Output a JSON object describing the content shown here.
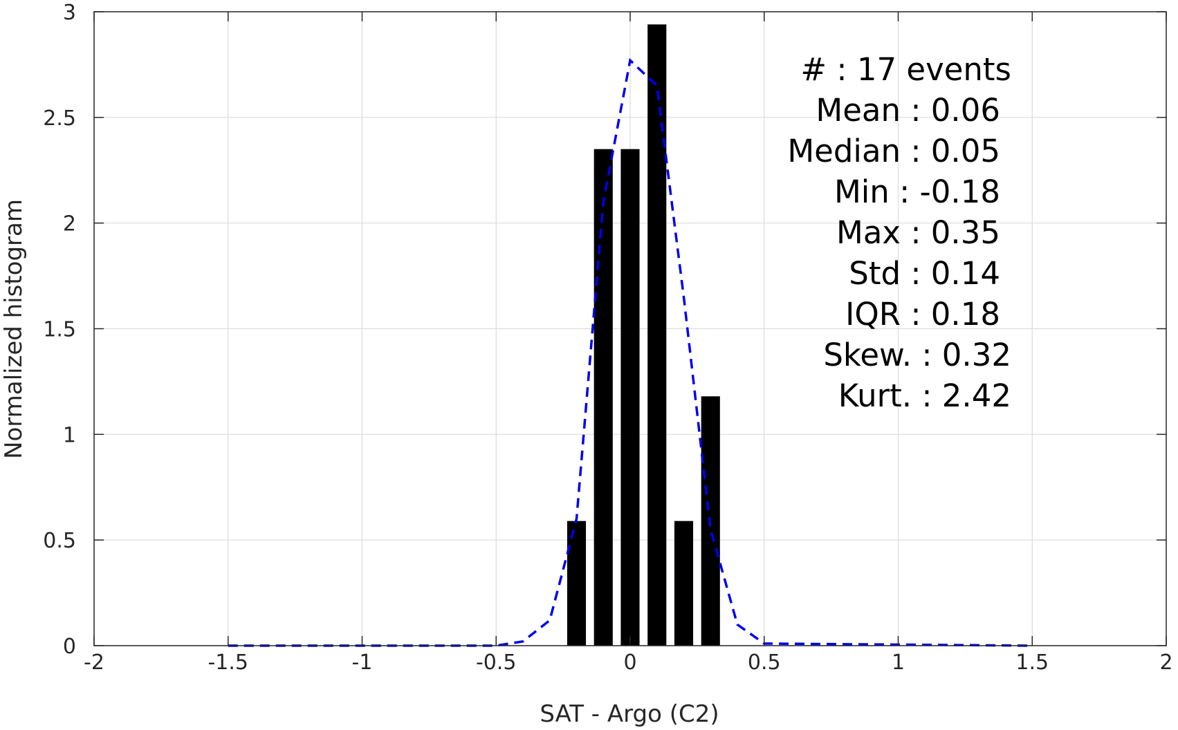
{
  "chart_data": {
    "type": "bar",
    "xlabel": "SAT - Argo (C2)",
    "ylabel": "Normalized histogram",
    "xlim": [
      -2,
      2
    ],
    "ylim": [
      0,
      3
    ],
    "xticks": [
      -2,
      -1.5,
      -1,
      -0.5,
      0,
      0.5,
      1,
      1.5,
      2
    ],
    "xtick_labels": [
      "-2",
      "-1.5",
      "-1",
      "-0.5",
      "0",
      "0.5",
      "1",
      "1.5",
      "2"
    ],
    "yticks": [
      0,
      0.5,
      1,
      1.5,
      2,
      2.5,
      3
    ],
    "ytick_labels": [
      "0",
      "0.5",
      "1",
      "1.5",
      "2",
      "2.5",
      "3"
    ],
    "grid": true,
    "bar_width": 0.07,
    "bar_color": "#000000",
    "bars": [
      {
        "x": -0.2,
        "value": 0.59
      },
      {
        "x": -0.1,
        "value": 2.35
      },
      {
        "x": 0.0,
        "value": 2.35
      },
      {
        "x": 0.1,
        "value": 2.94
      },
      {
        "x": 0.2,
        "value": 0.59
      },
      {
        "x": 0.3,
        "value": 1.18
      }
    ],
    "fit_line": {
      "style": "dashed",
      "color": "#0000ee",
      "x": [
        -1.5,
        -0.5,
        -0.4,
        -0.3,
        -0.2,
        -0.1,
        0.0,
        0.1,
        0.2,
        0.3,
        0.4,
        0.5,
        1.5
      ],
      "y": [
        0.0,
        0.0,
        0.02,
        0.12,
        0.6,
        2.1,
        2.77,
        2.65,
        1.65,
        0.55,
        0.1,
        0.01,
        0.0
      ]
    },
    "stats": [
      {
        "label": "#  : 17 events",
        "anchor": "end",
        "line": 0
      },
      {
        "label": "Mean : 0.06",
        "anchor": "end2",
        "line": 1
      },
      {
        "label": "Median : 0.05",
        "anchor": "end2",
        "line": 2
      },
      {
        "label": "Min : -0.18",
        "anchor": "end2",
        "line": 3
      },
      {
        "label": "Max : 0.35",
        "anchor": "end2",
        "line": 4
      },
      {
        "label": "Std : 0.14",
        "anchor": "end2",
        "line": 5
      },
      {
        "label": "IQR : 0.18",
        "anchor": "end2",
        "line": 6
      },
      {
        "label": "Skew. : 0.32",
        "anchor": "end",
        "line": 7
      },
      {
        "label": "Kurt. : 2.42",
        "anchor": "end",
        "line": 8
      }
    ]
  }
}
